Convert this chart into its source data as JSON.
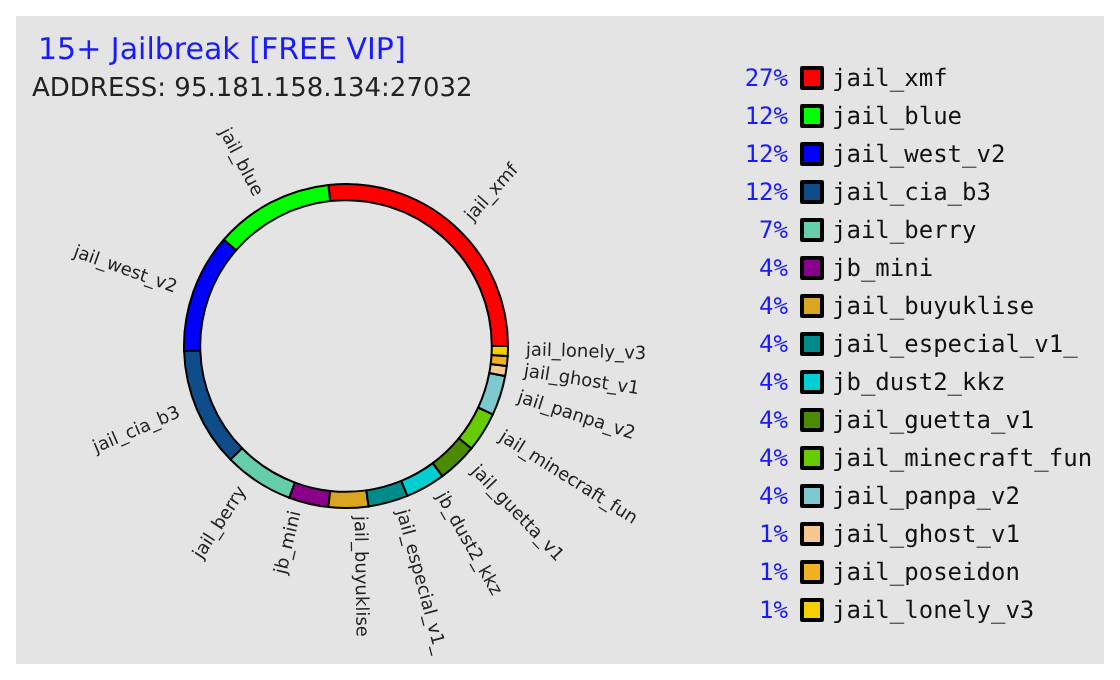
{
  "chart_data": {
    "type": "donut",
    "title": "15+ Jailbreak [FREE VIP]",
    "annotations": [
      "ADDRESS: 95.181.158.134:27032"
    ],
    "categories": [
      "jail_xmf",
      "jail_blue",
      "jail_west_v2",
      "jail_cia_b3",
      "jail_berry",
      "jb_mini",
      "jail_buyuklise",
      "jail_especial_v1_",
      "jb_dust2_kkz",
      "jail_guetta_v1",
      "jail_minecraft_fun",
      "jail_panpa_v2",
      "jail_ghost_v1",
      "jail_poseidon",
      "jail_lonely_v3"
    ],
    "values": [
      27,
      12,
      12,
      12,
      7,
      4,
      4,
      4,
      4,
      4,
      4,
      4,
      1,
      1,
      1
    ],
    "value_labels": [
      "27%",
      "12%",
      "12%",
      "12%",
      "7%",
      "4%",
      "4%",
      "4%",
      "4%",
      "4%",
      "4%",
      "4%",
      "1%",
      "1%",
      "1%"
    ],
    "colors": [
      "#ff0000",
      "#00ff00",
      "#0000ff",
      "#0f4c8a",
      "#66cdaa",
      "#8b008b",
      "#daa520",
      "#008b8b",
      "#00ced1",
      "#4b8b00",
      "#66cc00",
      "#7ec8d0",
      "#f5c890",
      "#f0b020",
      "#f5d000"
    ],
    "legend": "right"
  }
}
